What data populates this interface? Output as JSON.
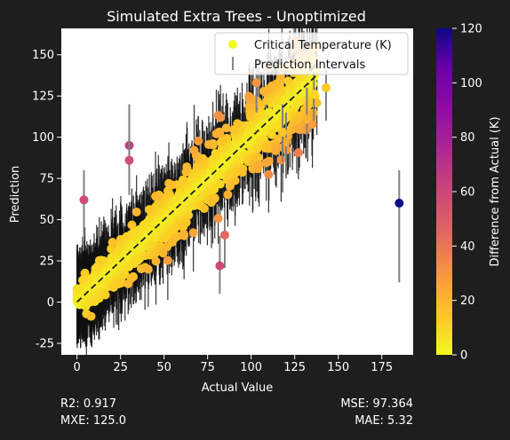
{
  "chart_data": {
    "type": "scatter",
    "title": "Simulated Extra Trees - Unoptimized",
    "xlabel": "Actual Value",
    "ylabel": "Prediction",
    "xlim": [
      -9,
      193
    ],
    "ylim": [
      -32,
      166
    ],
    "xticks": [
      0,
      25,
      50,
      75,
      100,
      125,
      150,
      175
    ],
    "yticks": [
      -25,
      0,
      25,
      50,
      75,
      100,
      125,
      150
    ],
    "grid": false,
    "legend": {
      "placement": "top-right",
      "entries": [
        {
          "label": "Critical Temperature (K)",
          "marker": "circle",
          "color": "#f0f921"
        },
        {
          "label": "Prediction Intervals",
          "marker": "vertical-line",
          "color": "#888888"
        }
      ]
    },
    "reference_line": {
      "style": "dashed",
      "color": "#1a1a1a",
      "from": [
        0,
        0
      ],
      "to": [
        137,
        137
      ]
    },
    "colorbar": {
      "label": "Difference from Actual (K)",
      "range": [
        0,
        120
      ],
      "ticks": [
        0,
        20,
        40,
        60,
        80,
        100,
        120
      ],
      "colormap": "plasma (reversed)"
    },
    "series": [
      {
        "kind": "highlighted_points",
        "points": [
          {
            "x": 185,
            "y": 60,
            "lower": 12,
            "upper": 80,
            "diff": 125
          },
          {
            "x": 30,
            "y": 95,
            "lower": 70,
            "upper": 120,
            "diff": 65
          },
          {
            "x": 4,
            "y": 62,
            "lower": 40,
            "upper": 80,
            "diff": 58
          },
          {
            "x": 30,
            "y": 86,
            "lower": 65,
            "upper": 105,
            "diff": 56
          },
          {
            "x": 82,
            "y": 22,
            "lower": 5,
            "upper": 40,
            "diff": 60
          },
          {
            "x": 143,
            "y": 130,
            "lower": 110,
            "upper": 142,
            "diff": 13
          },
          {
            "x": 132,
            "y": 111,
            "lower": 95,
            "upper": 130,
            "diff": 21
          },
          {
            "x": 136,
            "y": 126,
            "lower": 110,
            "upper": 140,
            "diff": 10
          },
          {
            "x": 103,
            "y": 133,
            "lower": 115,
            "upper": 145,
            "diff": 30
          },
          {
            "x": 120,
            "y": 97,
            "lower": 75,
            "upper": 115,
            "diff": 23
          },
          {
            "x": 118,
            "y": 103,
            "lower": 85,
            "upper": 120,
            "diff": 15
          }
        ]
      }
    ]
  },
  "stats": {
    "r2": "R2: 0.917",
    "mxe": "MXE: 125.0",
    "mse": "MSE: 97.364",
    "mae": "MAE: 5.32"
  }
}
